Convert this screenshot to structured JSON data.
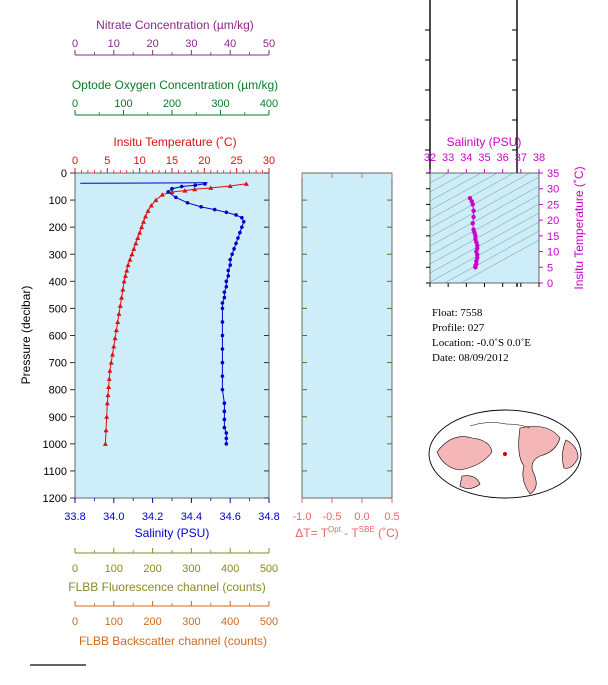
{
  "colors": {
    "nitrate": "#8a2a8a",
    "oxygen": "#0a7a2a",
    "temperature": "#dd1111",
    "salinity": "#0000cc",
    "delta_t": "#ee6666",
    "flbb_fluor": "#8a8a22",
    "flbb_backscatter": "#d2691e",
    "ts_magenta": "#cc00cc",
    "plot_bg": "#cdeef8"
  },
  "axes": {
    "nitrate": {
      "label": "Nitrate Concentration (µm/kg)",
      "ticks": [
        "0",
        "10",
        "20",
        "30",
        "40",
        "50"
      ]
    },
    "oxygen": {
      "label": "Optode Oxygen Concentration (µm/kg)",
      "ticks": [
        "0",
        "100",
        "200",
        "300",
        "400"
      ]
    },
    "temperature": {
      "label": "Insitu Temperature (˚C)",
      "ticks": [
        "0",
        "5",
        "10",
        "15",
        "20",
        "25",
        "30"
      ]
    },
    "pressure": {
      "label": "Pressure (decibar)",
      "ticks": [
        "0",
        "100",
        "200",
        "300",
        "400",
        "500",
        "600",
        "700",
        "800",
        "900",
        "1000",
        "1100",
        "1200"
      ]
    },
    "salinity": {
      "label": "Salinity (PSU)",
      "ticks": [
        "33.8",
        "34.0",
        "34.2",
        "34.4",
        "34.6",
        "34.8"
      ]
    },
    "delta_t": {
      "label": "ΔT= T",
      "sup1": "Opt",
      "mid": " - T",
      "sup2": "SBE",
      "unit": " (˚C)",
      "ticks": [
        "-1.0",
        "-0.5",
        "0.0",
        "0.5"
      ]
    },
    "flbb_fluor": {
      "label": "FLBB Fluorescence channel (counts)",
      "ticks": [
        "0",
        "100",
        "200",
        "300",
        "400",
        "500"
      ]
    },
    "flbb_backscatter": {
      "label": "FLBB Backscatter channel (counts)",
      "ticks": [
        "0",
        "100",
        "200",
        "300",
        "400",
        "500"
      ]
    },
    "ts_salinity": {
      "label": "Salinity (PSU)",
      "ticks": [
        "32",
        "33",
        "34",
        "35",
        "36",
        "37",
        "38"
      ]
    },
    "ts_temperature": {
      "label": "Insitu Temperature (˚C)",
      "ticks": [
        "0",
        "5",
        "10",
        "15",
        "20",
        "25",
        "30",
        "35"
      ]
    }
  },
  "info": {
    "float": "Float:  7558",
    "profile": "Profile:  027",
    "location": "Location:  -0.0˚S   0.0˚E",
    "date": "Date:  08/09/2012"
  },
  "chart_data": [
    {
      "type": "line",
      "name": "temperature-profile",
      "xlabel": "Insitu Temperature (˚C)",
      "ylabel": "Pressure (decibar)",
      "xlim": [
        0,
        30
      ],
      "ylim": [
        1200,
        0
      ],
      "x": [
        26.5,
        24,
        21,
        18.5,
        17,
        15,
        13.5,
        12.5,
        11.8,
        11.3,
        10.9,
        10.6,
        10.3,
        10,
        9.7,
        9.4,
        9.1,
        8.8,
        8.5,
        8.2,
        8,
        7.8,
        7.6,
        7.4,
        7.2,
        7,
        6.8,
        6.6,
        6.4,
        6.2,
        6,
        5.8,
        5.6,
        5.4,
        5.3,
        5.2,
        5.1,
        5,
        4.9,
        4.8,
        4.7
      ],
      "y": [
        40,
        48,
        55,
        60,
        65,
        70,
        80,
        100,
        120,
        140,
        160,
        180,
        200,
        220,
        240,
        260,
        280,
        300,
        320,
        340,
        360,
        380,
        400,
        430,
        460,
        490,
        520,
        550,
        580,
        610,
        640,
        670,
        700,
        730,
        760,
        790,
        820,
        850,
        900,
        950,
        1000
      ]
    },
    {
      "type": "line",
      "name": "salinity-profile",
      "xlabel": "Salinity (PSU)",
      "ylabel": "Pressure (decibar)",
      "xlim": [
        33.8,
        34.8
      ],
      "ylim": [
        1200,
        0
      ],
      "x": [
        34.47,
        34.42,
        34.35,
        34.3,
        34.28,
        34.32,
        34.38,
        34.45,
        34.52,
        34.58,
        34.63,
        34.66,
        34.67,
        34.66,
        34.65,
        34.64,
        34.63,
        34.62,
        34.61,
        34.6,
        34.6,
        34.59,
        34.59,
        34.58,
        34.58,
        34.57,
        34.57,
        34.56,
        34.56,
        34.56,
        34.56,
        34.56,
        34.56,
        34.56,
        34.56,
        34.57,
        34.57,
        34.57,
        34.57,
        34.58,
        34.58,
        34.58
      ],
      "y": [
        40,
        45,
        50,
        58,
        70,
        90,
        110,
        125,
        135,
        145,
        155,
        165,
        180,
        200,
        220,
        240,
        260,
        280,
        300,
        320,
        340,
        360,
        380,
        400,
        420,
        440,
        460,
        480,
        500,
        550,
        600,
        650,
        700,
        750,
        800,
        850,
        880,
        910,
        940,
        960,
        980,
        1000
      ]
    },
    {
      "type": "line",
      "name": "blue-surface-spike",
      "xlim": [
        0,
        30
      ],
      "ylim": [
        1200,
        0
      ],
      "x": [
        0.8,
        20.5
      ],
      "y": [
        38,
        36
      ]
    },
    {
      "type": "scatter",
      "name": "ts-diagram",
      "xlabel": "Salinity (PSU)",
      "ylabel": "Insitu Temperature (˚C)",
      "xlim": [
        32,
        38
      ],
      "ylim": [
        0,
        35
      ],
      "x": [
        34.2,
        34.3,
        34.35,
        34.4,
        34.4,
        34.35,
        34.4,
        34.45,
        34.5,
        34.5,
        34.55,
        34.6,
        34.6,
        34.55,
        34.6,
        34.6,
        34.55,
        34.55,
        34.5,
        34.5
      ],
      "y": [
        27,
        26,
        25,
        23,
        21,
        19,
        17,
        16,
        15,
        14,
        13,
        12,
        11,
        10,
        9,
        8,
        7,
        6,
        5.5,
        5
      ]
    },
    {
      "type": "line",
      "name": "delta-t",
      "xlabel": "ΔT= TOpt - TSBE (˚C)",
      "xlim": [
        -1.0,
        0.5
      ],
      "ylim": [
        1200,
        0
      ],
      "x": [],
      "y": []
    }
  ]
}
